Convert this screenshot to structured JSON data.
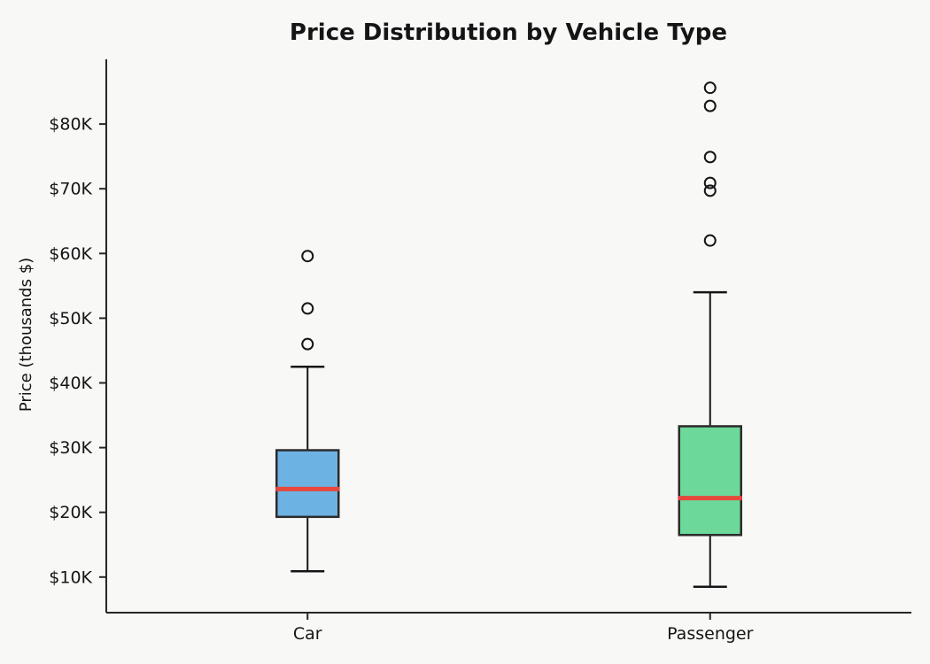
{
  "chart_data": {
    "type": "box",
    "title": "Price Distribution by Vehicle Type",
    "xlabel": "",
    "ylabel": "Price (thousands $)",
    "ylim": [
      4.5,
      90
    ],
    "yticks": [
      {
        "value": 10,
        "label": "$10K"
      },
      {
        "value": 20,
        "label": "$20K"
      },
      {
        "value": 30,
        "label": "$30K"
      },
      {
        "value": 40,
        "label": "$40K"
      },
      {
        "value": 50,
        "label": "$50K"
      },
      {
        "value": 60,
        "label": "$60K"
      },
      {
        "value": 70,
        "label": "$70K"
      },
      {
        "value": 80,
        "label": "$80K"
      }
    ],
    "categories": [
      "Car",
      "Passenger"
    ],
    "series": [
      {
        "name": "Car",
        "box_color": "#6cb2e2",
        "whisker_low": 10.9,
        "q1": 19.3,
        "median": 23.6,
        "q3": 29.6,
        "whisker_high": 42.5,
        "outliers": [
          46.0,
          51.5,
          59.6
        ]
      },
      {
        "name": "Passenger",
        "box_color": "#6cd89a",
        "whisker_low": 8.5,
        "q1": 16.5,
        "median": 22.2,
        "q3": 33.3,
        "whisker_high": 54.0,
        "outliers": [
          62.0,
          69.7,
          70.9,
          74.9,
          82.8,
          85.6
        ]
      }
    ],
    "median_color": "#e8473c",
    "edge_color": "#2b2b2b",
    "whisker_color": "#151515",
    "spine_color": "#262626",
    "background_color": "#f8f8f7",
    "grid": "off",
    "legend": "none"
  }
}
